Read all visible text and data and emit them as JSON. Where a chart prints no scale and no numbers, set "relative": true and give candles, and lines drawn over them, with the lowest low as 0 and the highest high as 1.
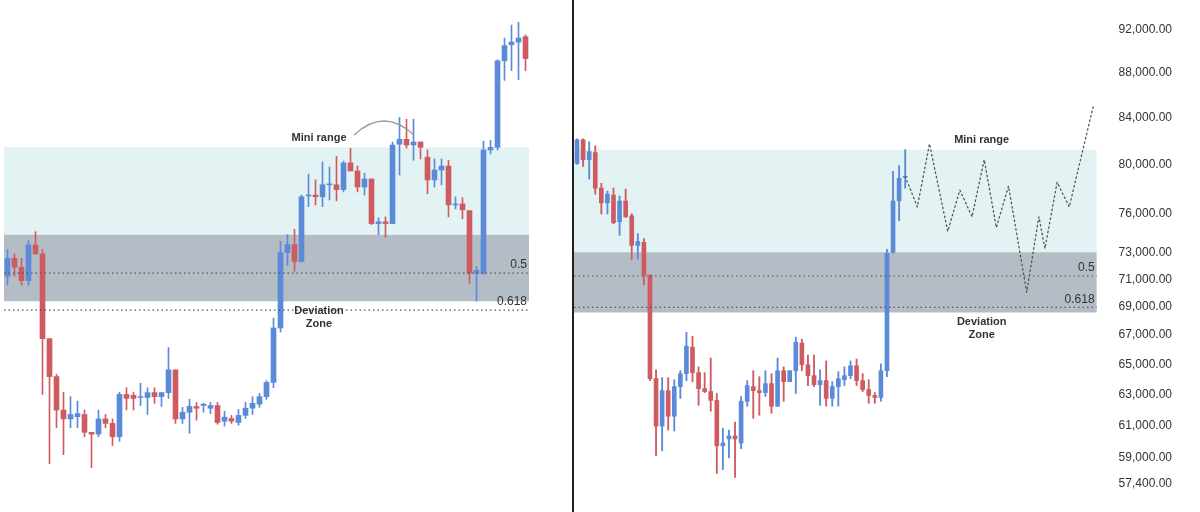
{
  "chart_data": [
    {
      "type": "candlestick",
      "relative": true,
      "tick_labels": false,
      "grid": false,
      "legend": false,
      "categories": [
        null,
        null,
        null,
        null,
        null,
        null,
        null,
        null,
        null,
        null,
        null,
        null,
        null,
        null,
        null,
        null,
        null,
        null,
        null,
        null,
        null,
        null,
        null,
        null,
        null,
        null,
        null,
        null,
        null,
        null,
        null,
        null,
        null,
        null,
        null,
        null,
        null,
        null,
        null,
        null,
        null,
        null,
        null,
        null,
        null,
        null,
        null,
        null,
        null,
        null,
        null,
        null,
        null,
        null,
        null,
        null,
        null,
        null,
        null,
        null,
        null,
        null,
        null,
        null,
        null,
        null,
        null,
        null,
        null,
        null,
        null,
        null,
        null,
        null,
        null
      ],
      "ohlc": [
        [
          0.43,
          0.49,
          0.41,
          0.47
        ],
        [
          0.47,
          0.48,
          0.43,
          0.45
        ],
        [
          0.45,
          0.47,
          0.41,
          0.42
        ],
        [
          0.42,
          0.51,
          0.41,
          0.5
        ],
        [
          0.5,
          0.53,
          0.48,
          0.48
        ],
        [
          0.48,
          0.49,
          0.165,
          0.29
        ],
        [
          0.29,
          0.29,
          0.01,
          0.205
        ],
        [
          0.205,
          0.21,
          0.09,
          0.13
        ],
        [
          0.13,
          0.17,
          0.03,
          0.11
        ],
        [
          0.11,
          0.16,
          0.09,
          0.12
        ],
        [
          0.115,
          0.15,
          0.09,
          0.122
        ],
        [
          0.12,
          0.13,
          0.07,
          0.08
        ],
        [
          0.08,
          0.08,
          0,
          0.076
        ],
        [
          0.076,
          0.13,
          0.07,
          0.11
        ],
        [
          0.11,
          0.12,
          0.09,
          0.1
        ],
        [
          0.1,
          0.11,
          0.05,
          0.07
        ],
        [
          0.07,
          0.17,
          0.06,
          0.165
        ],
        [
          0.165,
          0.18,
          0.13,
          0.156
        ],
        [
          0.163,
          0.17,
          0.13,
          0.156
        ],
        [
          0.158,
          0.19,
          0.14,
          0.16
        ],
        [
          0.158,
          0.18,
          0.12,
          0.169
        ],
        [
          0.169,
          0.18,
          0.145,
          0.16
        ],
        [
          0.16,
          0.169,
          0.138,
          0.169
        ],
        [
          0.169,
          0.27,
          0.156,
          0.22
        ],
        [
          0.22,
          0.22,
          0.1,
          0.11
        ],
        [
          0.11,
          0.136,
          0.1,
          0.125
        ],
        [
          0.125,
          0.154,
          0.078,
          0.138
        ],
        [
          0.138,
          0.147,
          0.107,
          0.134
        ],
        [
          0.14,
          0.145,
          0.125,
          0.143
        ],
        [
          0.134,
          0.147,
          0.122,
          0.14
        ],
        [
          0.14,
          0.147,
          0.098,
          0.102
        ],
        [
          0.105,
          0.127,
          0.094,
          0.114
        ],
        [
          0.111,
          0.118,
          0.1,
          0.105
        ],
        [
          0.102,
          0.131,
          0.096,
          0.118
        ],
        [
          0.118,
          0.147,
          0.111,
          0.134
        ],
        [
          0.134,
          0.16,
          0.12,
          0.145
        ],
        [
          0.143,
          0.167,
          0.136,
          0.16
        ],
        [
          0.16,
          0.196,
          0.154,
          0.192
        ],
        [
          0.192,
          0.336,
          0.18,
          0.314
        ],
        [
          0.314,
          0.508,
          0.305,
          0.483
        ],
        [
          0.483,
          0.523,
          0.454,
          0.501
        ],
        [
          0.501,
          0.535,
          0.441,
          0.463
        ],
        [
          0.463,
          0.612,
          0.461,
          0.608
        ],
        [
          0.61,
          0.659,
          0.586,
          0.612
        ],
        [
          0.612,
          0.646,
          0.59,
          0.608
        ],
        [
          0.608,
          0.686,
          0.586,
          0.635
        ],
        [
          0.635,
          0.675,
          0.601,
          0.637
        ],
        [
          0.635,
          0.699,
          0.599,
          0.624
        ],
        [
          0.624,
          0.688,
          0.619,
          0.684
        ],
        [
          0.684,
          0.717,
          0.666,
          0.666
        ],
        [
          0.666,
          0.677,
          0.619,
          0.63
        ],
        [
          0.63,
          0.661,
          0.612,
          0.648
        ],
        [
          0.648,
          0.648,
          0.546,
          0.548
        ],
        [
          0.548,
          0.561,
          0.523,
          0.552
        ],
        [
          0.552,
          0.563,
          0.517,
          0.548
        ],
        [
          0.548,
          0.731,
          0.548,
          0.724
        ],
        [
          0.726,
          0.786,
          0.657,
          0.737
        ],
        [
          0.737,
          0.782,
          0.717,
          0.724
        ],
        [
          0.724,
          0.782,
          0.69,
          0.731
        ],
        [
          0.731,
          0.731,
          0.693,
          0.719
        ],
        [
          0.697,
          0.713,
          0.615,
          0.646
        ],
        [
          0.646,
          0.693,
          0.63,
          0.668
        ],
        [
          0.668,
          0.693,
          0.635,
          0.677
        ],
        [
          0.677,
          0.69,
          0.563,
          0.59
        ],
        [
          0.59,
          0.608,
          0.581,
          0.592
        ],
        [
          0.592,
          0.606,
          0.559,
          0.579
        ],
        [
          0.577,
          0.577,
          0.414,
          0.437
        ],
        [
          0.437,
          0.452,
          0.374,
          0.443
        ],
        [
          0.437,
          0.733,
          0.434,
          0.713
        ],
        [
          0.713,
          0.735,
          0.704,
          0.719
        ],
        [
          0.719,
          0.915,
          0.713,
          0.913
        ],
        [
          0.913,
          0.964,
          0.869,
          0.947
        ],
        [
          0.949,
          0.993,
          0.891,
          0.955
        ],
        [
          0.955,
          1,
          0.871,
          0.964
        ],
        [
          0.967,
          0.971,
          0.891,
          0.918
        ]
      ],
      "colors": [
        "#5b8bd8",
        "#cf5b61",
        "#cf5b61",
        "#5b8bd8",
        "#cf5b61",
        "#cf5b61",
        "#cf5b61",
        "#cf5b61",
        "#cf5b61",
        "#5b8bd8",
        "#5b8bd8",
        "#cf5b61",
        "#cf5b61",
        "#5b8bd8",
        "#cf5b61",
        "#cf5b61",
        "#5b8bd8",
        "#cf5b61",
        "#cf5b61",
        "#5b8bd8",
        "#5b8bd8",
        "#cf5b61",
        "#5b8bd8",
        "#5b8bd8",
        "#cf5b61",
        "#5b8bd8",
        "#5b8bd8",
        "#cf5b61",
        "#5b8bd8",
        "#5b8bd8",
        "#cf5b61",
        "#5b8bd8",
        "#cf5b61",
        "#5b8bd8",
        "#5b8bd8",
        "#5b8bd8",
        "#5b8bd8",
        "#5b8bd8",
        "#5b8bd8",
        "#5b8bd8",
        "#5b8bd8",
        "#cf5b61",
        "#5b8bd8",
        "#5b8bd8",
        "#cf5b61",
        "#5b8bd8",
        "#5b8bd8",
        "#cf5b61",
        "#5b8bd8",
        "#cf5b61",
        "#cf5b61",
        "#5b8bd8",
        "#cf5b61",
        "#5b8bd8",
        "#cf5b61",
        "#5b8bd8",
        "#5b8bd8",
        "#cf5b61",
        "#5b8bd8",
        "#cf5b61",
        "#cf5b61",
        "#5b8bd8",
        "#5b8bd8",
        "#cf5b61",
        "#5b8bd8",
        "#cf5b61",
        "#cf5b61",
        "#5b8bd8",
        "#5b8bd8",
        "#5b8bd8",
        "#5b8bd8",
        "#5b8bd8",
        "#5b8bd8",
        "#5b8bd8",
        "#cf5b61"
      ],
      "bands": [
        {
          "axis": "y",
          "from": 0.523,
          "to": 0.719,
          "label": "Mini range",
          "color": "#e3f3f3"
        },
        {
          "axis": "y",
          "from": 0.374,
          "to": 0.523,
          "label": "Deviation Zone",
          "color": "#b4bcc6"
        }
      ],
      "ref_lines": [
        {
          "axis": "y",
          "value": 0.437,
          "line_style": "dotted",
          "color": "#555555"
        },
        {
          "axis": "y",
          "value": 0.354,
          "line_style": "dotted",
          "color": "#555555"
        }
      ],
      "annotations": [
        {
          "text": "0.5",
          "y": 0.437
        },
        {
          "text": "0.618",
          "y": 0.354
        }
      ]
    },
    {
      "type": "candlestick",
      "log": "y",
      "tick_labels": "y",
      "grid": false,
      "legend": false,
      "categories": [
        null,
        null,
        null,
        null,
        null,
        null,
        null,
        null,
        null,
        null,
        null,
        null,
        null,
        null,
        null,
        null,
        null,
        null,
        null,
        null,
        null,
        null,
        null,
        null,
        null,
        null,
        null,
        null,
        null,
        null,
        null,
        null,
        null,
        null,
        null,
        null,
        null,
        null,
        null,
        null,
        null,
        null,
        null,
        null,
        null,
        null,
        null,
        null,
        null,
        null,
        null,
        null,
        null,
        null,
        null,
        null,
        null,
        null,
        null,
        null,
        null,
        null,
        null,
        null,
        null,
        null,
        null,
        null,
        null,
        null,
        null,
        null,
        null,
        null,
        null,
        null,
        null,
        null,
        null,
        null,
        null,
        null,
        null,
        null,
        null,
        null
      ],
      "ylim": [
        57400,
        92000
      ],
      "yticks": [
        {
          "value": 57400,
          "label": "57,400.00"
        },
        {
          "value": 59000,
          "label": "59,000.00"
        },
        {
          "value": 61000,
          "label": "61,000.00"
        },
        {
          "value": 63000,
          "label": "63,000.00"
        },
        {
          "value": 65000,
          "label": "65,000.00"
        },
        {
          "value": 67000,
          "label": "67,000.00"
        },
        {
          "value": 69000,
          "label": "69,000.00"
        },
        {
          "value": 71000,
          "label": "71,000.00"
        },
        {
          "value": 73000,
          "label": "73,000.00"
        },
        {
          "value": 76000,
          "label": "76,000.00"
        },
        {
          "value": 80000,
          "label": "80,000.00"
        },
        {
          "value": 84000,
          "label": "84,000.00"
        },
        {
          "value": 88000,
          "label": "88,000.00"
        },
        {
          "value": 92000,
          "label": "92,000.00"
        }
      ],
      "ohlc": [
        [
          80090,
          82160,
          80010,
          82080
        ],
        [
          82080,
          82160,
          79840,
          80410
        ],
        [
          80410,
          81910,
          78780,
          81080
        ],
        [
          81000,
          81570,
          77580,
          78060
        ],
        [
          78060,
          78460,
          76000,
          76870
        ],
        [
          76870,
          77820,
          76000,
          77580
        ],
        [
          77500,
          78060,
          75230,
          75300
        ],
        [
          75380,
          77420,
          74310,
          77020
        ],
        [
          77020,
          77980,
          75700,
          75770
        ],
        [
          75850,
          76000,
          72500,
          73550
        ],
        [
          73550,
          74460,
          72500,
          73850
        ],
        [
          73780,
          74080,
          70590,
          71320
        ],
        [
          71320,
          71320,
          63900,
          64040
        ],
        [
          64040,
          64630,
          59110,
          60960
        ],
        [
          60960,
          64110,
          59410,
          63250
        ],
        [
          63250,
          64110,
          60710,
          61590
        ],
        [
          61590,
          63970,
          60650,
          63510
        ],
        [
          63510,
          64570,
          62740,
          64370
        ],
        [
          64370,
          67200,
          63900,
          66240
        ],
        [
          66170,
          66930,
          63840,
          64440
        ],
        [
          64440,
          64830,
          62290,
          63380
        ],
        [
          63380,
          64440,
          63120,
          63190
        ],
        [
          63190,
          65430,
          61910,
          62610
        ],
        [
          62610,
          63060,
          58030,
          59720
        ],
        [
          59720,
          60830,
          58270,
          59900
        ],
        [
          60150,
          60710,
          58970,
          60340
        ],
        [
          60340,
          61210,
          57790,
          60150
        ],
        [
          59900,
          62860,
          59540,
          62550
        ],
        [
          62550,
          63910,
          62230,
          63580
        ],
        [
          63510,
          64570,
          61460,
          63250
        ],
        [
          63250,
          64170,
          61650,
          63120
        ],
        [
          63120,
          64570,
          62860,
          63710
        ],
        [
          63710,
          64370,
          61780,
          62230
        ],
        [
          62230,
          65430,
          62230,
          64570
        ],
        [
          64570,
          64830,
          62550,
          63840
        ],
        [
          63840,
          64570,
          63840,
          64570
        ],
        [
          64570,
          66860,
          63060,
          66510
        ],
        [
          66450,
          66720,
          64570,
          64970
        ],
        [
          64970,
          65630,
          63580,
          64240
        ],
        [
          64240,
          65630,
          63510,
          63640
        ],
        [
          63640,
          64630,
          62290,
          63910
        ],
        [
          63910,
          65230,
          62230,
          62740
        ],
        [
          62740,
          63840,
          62230,
          63510
        ],
        [
          63510,
          64500,
          62230,
          64040
        ],
        [
          63970,
          64830,
          63580,
          64240
        ],
        [
          64240,
          65230,
          64040,
          64900
        ],
        [
          64900,
          65360,
          63580,
          63910
        ],
        [
          63910,
          64370,
          63190,
          63320
        ],
        [
          63320,
          63970,
          62420,
          62930
        ],
        [
          62930,
          63120,
          62420,
          62800
        ],
        [
          62800,
          65030,
          62550,
          64570
        ],
        [
          64570,
          73250,
          64170,
          72950
        ],
        [
          73030,
          79430,
          72950,
          77020
        ],
        [
          77020,
          79920,
          75460,
          78860
        ],
        [
          78940,
          81240,
          78060,
          79020
        ],
        null,
        null,
        null,
        null,
        null,
        null,
        null,
        null,
        null,
        null,
        null,
        null,
        null,
        null,
        null,
        null,
        null,
        null,
        null,
        null,
        null,
        null,
        null,
        null,
        null,
        null,
        null,
        null,
        null,
        null,
        null
      ],
      "colors": [
        "#5b8bd8",
        "#cf5b61",
        "#5b8bd8",
        "#cf5b61",
        "#cf5b61",
        "#5b8bd8",
        "#cf5b61",
        "#5b8bd8",
        "#cf5b61",
        "#cf5b61",
        "#5b8bd8",
        "#cf5b61",
        "#cf5b61",
        "#cf5b61",
        "#5b8bd8",
        "#cf5b61",
        "#5b8bd8",
        "#5b8bd8",
        "#5b8bd8",
        "#cf5b61",
        "#cf5b61",
        "#cf5b61",
        "#cf5b61",
        "#cf5b61",
        "#5b8bd8",
        "#5b8bd8",
        "#cf5b61",
        "#5b8bd8",
        "#5b8bd8",
        "#cf5b61",
        "#cf5b61",
        "#5b8bd8",
        "#cf5b61",
        "#5b8bd8",
        "#cf5b61",
        "#5b8bd8",
        "#5b8bd8",
        "#cf5b61",
        "#cf5b61",
        "#cf5b61",
        "#5b8bd8",
        "#cf5b61",
        "#5b8bd8",
        "#5b8bd8",
        "#5b8bd8",
        "#5b8bd8",
        "#cf5b61",
        "#cf5b61",
        "#cf5b61",
        "#cf5b61",
        "#5b8bd8",
        "#5b8bd8",
        "#5b8bd8",
        "#5b8bd8",
        "#5b8bd8",
        null,
        null,
        null,
        null,
        null,
        null,
        null,
        null,
        null,
        null,
        null,
        null,
        null,
        null,
        null,
        null,
        null,
        null,
        null,
        null,
        null,
        null,
        null,
        null,
        null,
        null,
        null,
        null,
        null,
        null,
        null
      ],
      "series": [
        {
          "type": "line",
          "color": "#555555",
          "line_style": "dotted",
          "marker": "none",
          "values": [
            null,
            null,
            null,
            null,
            null,
            null,
            null,
            null,
            null,
            null,
            null,
            null,
            null,
            null,
            null,
            null,
            null,
            null,
            null,
            null,
            null,
            null,
            null,
            null,
            null,
            null,
            null,
            null,
            null,
            null,
            null,
            null,
            null,
            null,
            null,
            null,
            null,
            null,
            null,
            null,
            null,
            null,
            null,
            null,
            null,
            null,
            null,
            null,
            null,
            null,
            null,
            null,
            null,
            null,
            79020,
            null,
            76550,
            null,
            81740,
            null,
            null,
            74640,
            null,
            77900,
            null,
            75770,
            null,
            80410,
            null,
            74930,
            null,
            78220,
            null,
            null,
            70060,
            null,
            75770,
            73320,
            null,
            78530,
            null,
            76550,
            null,
            null,
            null,
            85120
          ]
        }
      ],
      "bands": [
        {
          "axis": "y",
          "from": 73030,
          "to": 81240,
          "label": "Mini range",
          "color": "#e3f3f3"
        },
        {
          "axis": "y",
          "from": 68590,
          "to": 73030,
          "label": "Deviation Zone",
          "color": "#b4bcc6"
        }
      ],
      "ref_lines": [
        {
          "axis": "y",
          "value": 71250,
          "line_style": "dotted",
          "color": "#555555"
        },
        {
          "axis": "y",
          "value": 68960,
          "line_style": "dotted",
          "color": "#555555"
        }
      ],
      "annotations": [
        {
          "text": "0.5",
          "y": 71250
        },
        {
          "text": "0.618",
          "y": 68960
        }
      ]
    }
  ]
}
